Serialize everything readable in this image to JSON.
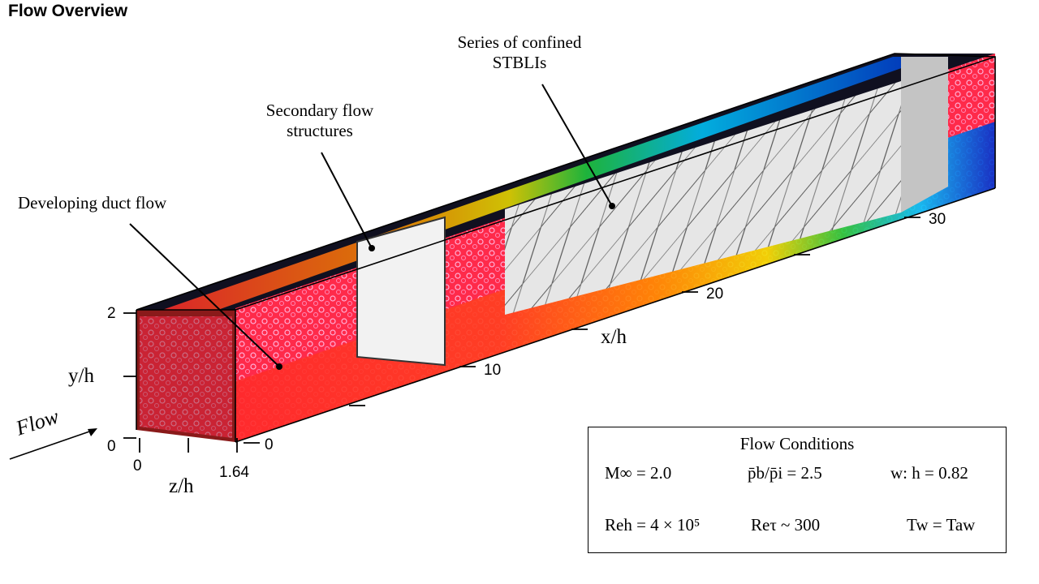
{
  "title": "Flow Overview",
  "annotations": {
    "developing": "Developing duct flow",
    "secondary_line1": "Secondary flow",
    "secondary_line2": "structures",
    "series_line1": "Series of confined",
    "series_line2": "STBLIs"
  },
  "axes": {
    "x_name": "x/h",
    "y_name": "y/h",
    "z_name": "z/h",
    "flow_word": "Flow",
    "x_ticks": [
      "0",
      "10",
      "20",
      "30"
    ],
    "y_ticks": [
      "0",
      "2"
    ],
    "z_ticks": [
      "0",
      "1.64"
    ]
  },
  "conditions": {
    "heading": "Flow Conditions",
    "mach": "M∞ = 2.0",
    "pressure_ratio": "p̄b/p̄i = 2.5",
    "aspect": "w: h = 0.82",
    "reynolds_h": "Reh = 4 × 10⁵",
    "reynolds_tau": "Reτ ~ 300",
    "wall_temp": "Tw = Taw"
  },
  "colors": {
    "turbulent_red": "#ff2a2a",
    "turbulent_pink": "#ff5aa0",
    "orange": "#ff8c00",
    "yellow": "#f0e000",
    "green": "#20d040",
    "cyan": "#00c8ff",
    "blue": "#0030d0",
    "shock_gray": "#c8c8c8"
  }
}
